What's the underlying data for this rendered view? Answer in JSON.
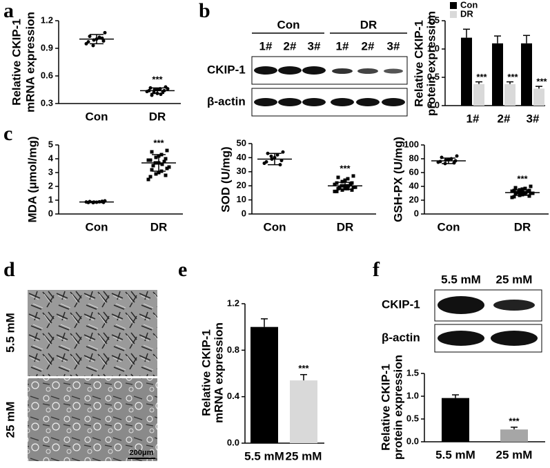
{
  "chart_data": [
    {
      "type": "dot",
      "label": "a",
      "ylabel": [
        "Relative CKIP-1",
        "mRNA expression"
      ],
      "categories": [
        "Con",
        "DR"
      ],
      "points": [
        [
          1.07,
          1.03,
          1.02,
          1.0,
          0.99,
          0.98,
          0.97,
          0.95,
          1.01,
          0.93
        ],
        [
          0.48,
          0.47,
          0.46,
          0.45,
          0.45,
          0.44,
          0.44,
          0.43,
          0.43,
          0.42,
          0.41,
          0.4,
          0.39,
          0.46
        ]
      ],
      "means": [
        1.0,
        0.44
      ],
      "sds": [
        0.05,
        0.03
      ],
      "annotation": "***",
      "ylim": [
        0.3,
        1.2
      ],
      "yticks": [
        0.3,
        0.6,
        0.9,
        1.2
      ]
    },
    {
      "type": "bar",
      "label": "b",
      "ylabel": [
        "Relative CKIP-1",
        "protein expression"
      ],
      "categories": [
        "1#",
        "2#",
        "3#"
      ],
      "series": [
        {
          "name": "Con",
          "color": "#000000",
          "values": [
            1.2,
            1.1,
            1.1
          ],
          "errors": [
            0.15,
            0.13,
            0.14
          ]
        },
        {
          "name": "DR",
          "color": "#d9d9d9",
          "values": [
            0.38,
            0.38,
            0.3
          ],
          "errors": [
            0.04,
            0.04,
            0.04
          ],
          "annotations": [
            "***",
            "***",
            "***"
          ]
        }
      ],
      "legend": "top-left",
      "blot": {
        "groups": [
          "Con",
          "DR"
        ],
        "lanes": [
          "1#",
          "2#",
          "3#",
          "1#",
          "2#",
          "3#"
        ],
        "rows": [
          "CKIP-1",
          "β-actin"
        ]
      },
      "ylim": [
        0,
        1.5
      ],
      "yticks": [
        {
          "value": 0,
          "label": "0.0"
        },
        0.5,
        {
          "value": 1,
          "label": "1.0"
        },
        1.5
      ]
    },
    {
      "type": "dot",
      "label": "c",
      "ylabel": [
        "MDA (μmol/mg)"
      ],
      "categories": [
        "Con",
        "DR"
      ],
      "points": [
        [
          0.95,
          0.9,
          0.88,
          0.85,
          0.86,
          0.84,
          0.83,
          0.87,
          0.92,
          0.82
        ],
        [
          4.6,
          4.5,
          4.3,
          4.2,
          4.1,
          4.0,
          3.9,
          3.9,
          3.8,
          3.7,
          3.7,
          3.6,
          3.5,
          3.4,
          3.3,
          3.2,
          3.1,
          3.0,
          2.9,
          2.8,
          2.7,
          2.5
        ]
      ],
      "means": [
        0.87,
        3.7
      ],
      "sds": [
        0.05,
        0.6
      ],
      "annotation": "***",
      "ylim": [
        0,
        5
      ],
      "yticks": [
        0,
        1,
        2,
        3,
        4,
        5
      ]
    },
    {
      "type": "dot",
      "ylabel": [
        "SOD (U/mg)"
      ],
      "categories": [
        "Con",
        "DR"
      ],
      "points": [
        [
          44,
          43,
          42,
          40,
          39,
          38,
          37,
          36,
          35,
          41
        ],
        [
          27,
          26,
          25,
          24,
          23,
          22,
          22,
          21,
          21,
          20,
          20,
          20,
          19,
          19,
          19,
          18,
          18,
          18,
          17,
          17,
          16,
          16
        ]
      ],
      "means": [
        39,
        20
      ],
      "sds": [
        4,
        2.5
      ],
      "annotation": "***",
      "ylim": [
        0,
        50
      ],
      "yticks": [
        0,
        10,
        20,
        30,
        40,
        50
      ]
    },
    {
      "type": "dot",
      "ylabel": [
        "GSH-PX (U/mg)"
      ],
      "categories": [
        "Con",
        "DR"
      ],
      "points": [
        [
          84,
          82,
          80,
          79,
          78,
          77,
          76,
          75,
          74,
          73
        ],
        [
          40,
          38,
          37,
          36,
          35,
          34,
          34,
          33,
          33,
          32,
          32,
          31,
          31,
          30,
          30,
          29,
          29,
          28,
          27,
          26,
          25,
          24
        ]
      ],
      "means": [
        77,
        31
      ],
      "sds": [
        4,
        4
      ],
      "annotation": "***",
      "ylim": [
        0,
        100
      ],
      "yticks": [
        0,
        20,
        40,
        60,
        80,
        100
      ]
    },
    {
      "type": "image",
      "label": "d",
      "rows": [
        "5.5 mM",
        "25 mM"
      ],
      "scale_bar": "200μm"
    },
    {
      "type": "bar",
      "label": "e",
      "ylabel": [
        "Relative CKIP-1",
        "mRNA expression"
      ],
      "categories": [
        "5.5 mM",
        "25 mM"
      ],
      "values": [
        1.0,
        0.54
      ],
      "errors": [
        0.07,
        0.05
      ],
      "colors": [
        "#000000",
        "#d9d9d9"
      ],
      "annotations": [
        null,
        "***"
      ],
      "ylim": [
        0,
        1.2
      ],
      "yticks": [
        {
          "value": 0,
          "label": "0.0"
        },
        0.4,
        0.8,
        1.2
      ]
    },
    {
      "type": "bar",
      "label": "f",
      "ylabel": [
        "Relative CKIP-1",
        "protein expression"
      ],
      "categories": [
        "5.5 mM",
        "25 mM"
      ],
      "values": [
        0.96,
        0.27
      ],
      "errors": [
        0.07,
        0.05
      ],
      "colors": [
        "#000000",
        "#a6a6a6"
      ],
      "annotations": [
        null,
        "***"
      ],
      "blot": {
        "lanes": [
          "5.5 mM",
          "25 mM"
        ],
        "rows": [
          "CKIP-1",
          "β-actin"
        ]
      },
      "ylim": [
        0,
        1.5
      ],
      "yticks": [
        {
          "value": 0,
          "label": "0.0"
        },
        0.5,
        {
          "value": 1,
          "label": "1.0"
        },
        1.5
      ]
    }
  ]
}
